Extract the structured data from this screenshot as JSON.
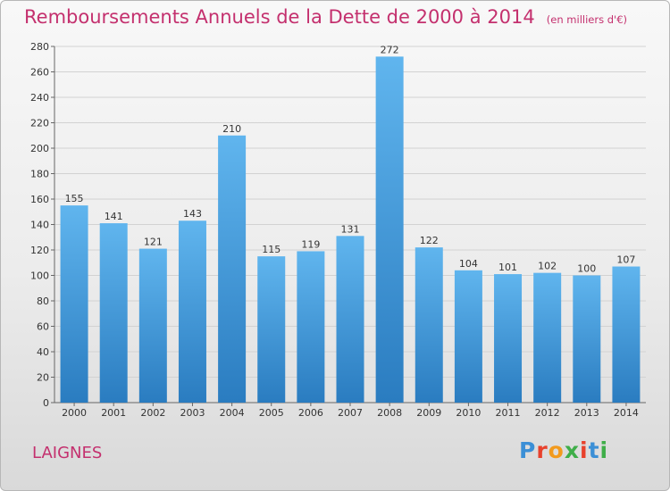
{
  "header": {
    "title": "Remboursements Annuels de la Dette de 2000 à 2014",
    "unit": "(en milliers d'€)"
  },
  "footer": {
    "place": "LAIGNES",
    "brand": "Proxiti"
  },
  "colors": {
    "title": "#c4306e",
    "bar_light": "#5eb3ed",
    "bar_dark": "#2a7cc0"
  },
  "chart_data": {
    "type": "bar",
    "title": "Remboursements Annuels de la Dette de 2000 à 2014",
    "subtitle": "(en milliers d'€)",
    "xlabel": "",
    "ylabel": "",
    "categories": [
      "2000",
      "2001",
      "2002",
      "2003",
      "2004",
      "2005",
      "2006",
      "2007",
      "2008",
      "2009",
      "2010",
      "2011",
      "2012",
      "2013",
      "2014"
    ],
    "values": [
      155,
      141,
      121,
      143,
      210,
      115,
      119,
      131,
      272,
      122,
      104,
      101,
      102,
      100,
      107
    ],
    "ylim": [
      0,
      280
    ],
    "yticks": [
      0,
      20,
      40,
      60,
      80,
      100,
      120,
      140,
      160,
      180,
      200,
      220,
      240,
      260,
      280
    ],
    "grid": true,
    "legend": "none"
  }
}
